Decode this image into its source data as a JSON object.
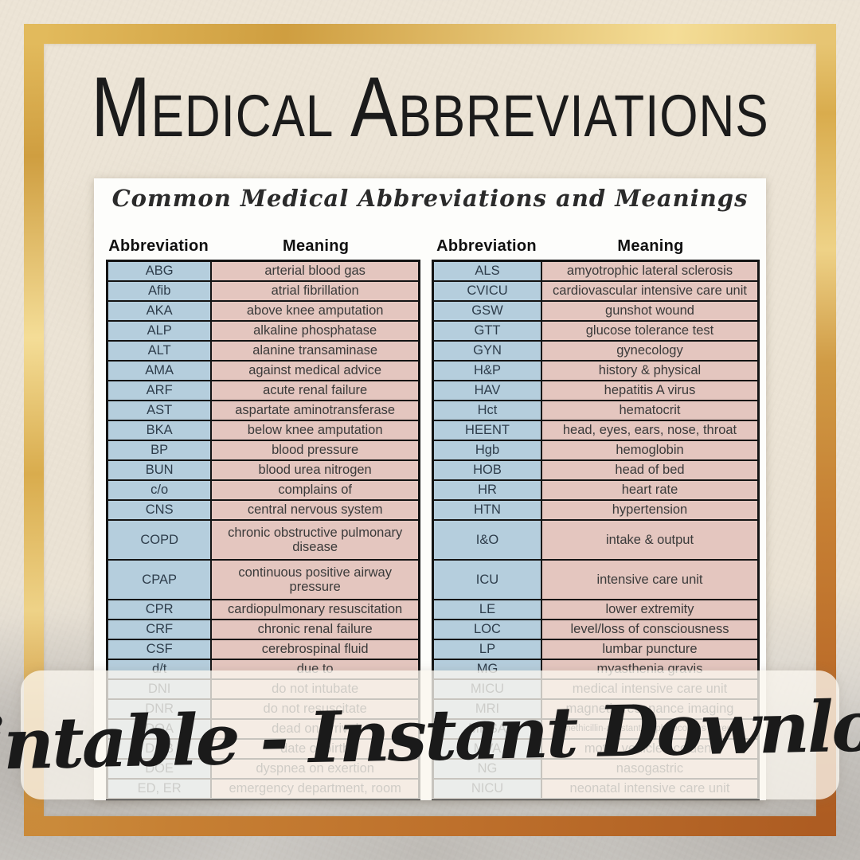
{
  "title": "Medical Abbreviations",
  "banner": {
    "text": "Printable - Instant Download"
  },
  "document": {
    "heading": "Common Medical Abbreviations and Meanings",
    "column_headers": {
      "abbreviation": "Abbreviation",
      "meaning": "Meaning"
    },
    "left_table": {
      "rows": [
        {
          "abbr": "ABG",
          "meaning": "arterial blood gas"
        },
        {
          "abbr": "Afib",
          "meaning": "atrial fibrillation"
        },
        {
          "abbr": "AKA",
          "meaning": "above knee amputation"
        },
        {
          "abbr": "ALP",
          "meaning": "alkaline phosphatase"
        },
        {
          "abbr": "ALT",
          "meaning": "alanine transaminase"
        },
        {
          "abbr": "AMA",
          "meaning": "against medical advice"
        },
        {
          "abbr": "ARF",
          "meaning": "acute renal failure"
        },
        {
          "abbr": "AST",
          "meaning": "aspartate aminotransferase"
        },
        {
          "abbr": "BKA",
          "meaning": "below knee amputation"
        },
        {
          "abbr": "BP",
          "meaning": "blood pressure"
        },
        {
          "abbr": "BUN",
          "meaning": "blood urea nitrogen"
        },
        {
          "abbr": "c/o",
          "meaning": "complains of"
        },
        {
          "abbr": "CNS",
          "meaning": "central nervous system"
        },
        {
          "abbr": "COPD",
          "meaning": "chronic obstructive pulmonary disease",
          "tall": true
        },
        {
          "abbr": "CPAP",
          "meaning": "continuous positive airway pressure",
          "tall": true
        },
        {
          "abbr": "CPR",
          "meaning": "cardiopulmonary resuscitation"
        },
        {
          "abbr": "CRF",
          "meaning": "chronic renal failure"
        },
        {
          "abbr": "CSF",
          "meaning": "cerebrospinal fluid"
        },
        {
          "abbr": "d/t",
          "meaning": "due to"
        },
        {
          "abbr": "DNI",
          "meaning": "do not intubate"
        },
        {
          "abbr": "DNR",
          "meaning": "do not resuscitate"
        },
        {
          "abbr": "DOA",
          "meaning": "dead on arrival"
        },
        {
          "abbr": "DOB",
          "meaning": "date of birth"
        },
        {
          "abbr": "DOE",
          "meaning": "dyspnea on exertion"
        },
        {
          "abbr": "ED, ER",
          "meaning": "emergency department, room"
        }
      ]
    },
    "right_table": {
      "rows": [
        {
          "abbr": "ALS",
          "meaning": "amyotrophic lateral sclerosis"
        },
        {
          "abbr": "CVICU",
          "meaning": "cardiovascular intensive care unit"
        },
        {
          "abbr": "GSW",
          "meaning": "gunshot wound"
        },
        {
          "abbr": "GTT",
          "meaning": "glucose tolerance test"
        },
        {
          "abbr": "GYN",
          "meaning": "gynecology"
        },
        {
          "abbr": "H&P",
          "meaning": "history & physical"
        },
        {
          "abbr": "HAV",
          "meaning": "hepatitis A virus"
        },
        {
          "abbr": "Hct",
          "meaning": "hematocrit"
        },
        {
          "abbr": "HEENT",
          "meaning": "head, eyes, ears, nose, throat"
        },
        {
          "abbr": "Hgb",
          "meaning": "hemoglobin"
        },
        {
          "abbr": "HOB",
          "meaning": "head of bed"
        },
        {
          "abbr": "HR",
          "meaning": "heart rate"
        },
        {
          "abbr": "HTN",
          "meaning": "hypertension"
        },
        {
          "abbr": "I&O",
          "meaning": "intake & output",
          "tall": true
        },
        {
          "abbr": "ICU",
          "meaning": "intensive care unit",
          "tall": true
        },
        {
          "abbr": "LE",
          "meaning": "lower extremity"
        },
        {
          "abbr": "LOC",
          "meaning": "level/loss of consciousness"
        },
        {
          "abbr": "LP",
          "meaning": "lumbar puncture"
        },
        {
          "abbr": "MG",
          "meaning": "myasthenia gravis"
        },
        {
          "abbr": "MICU",
          "meaning": "medical intensive care unit"
        },
        {
          "abbr": "MRI",
          "meaning": "magnetic resonance imaging"
        },
        {
          "abbr": "MRSA",
          "meaning": "methicillin-resistant staphylococcus aureus",
          "small": true
        },
        {
          "abbr": "MVA",
          "meaning": "motor vehicle accident"
        },
        {
          "abbr": "NG",
          "meaning": "nasogastric"
        },
        {
          "abbr": "NICU",
          "meaning": "neonatal intensive care unit"
        }
      ]
    }
  },
  "colors": {
    "abbr_cell": "#b5cedd",
    "meaning_cell": "#e4c6bf",
    "gold": "#d9ac4d",
    "copper": "#bd6f2b",
    "page": "#fdfdfb",
    "banner_bg": "rgba(250,246,238,0.78)"
  }
}
